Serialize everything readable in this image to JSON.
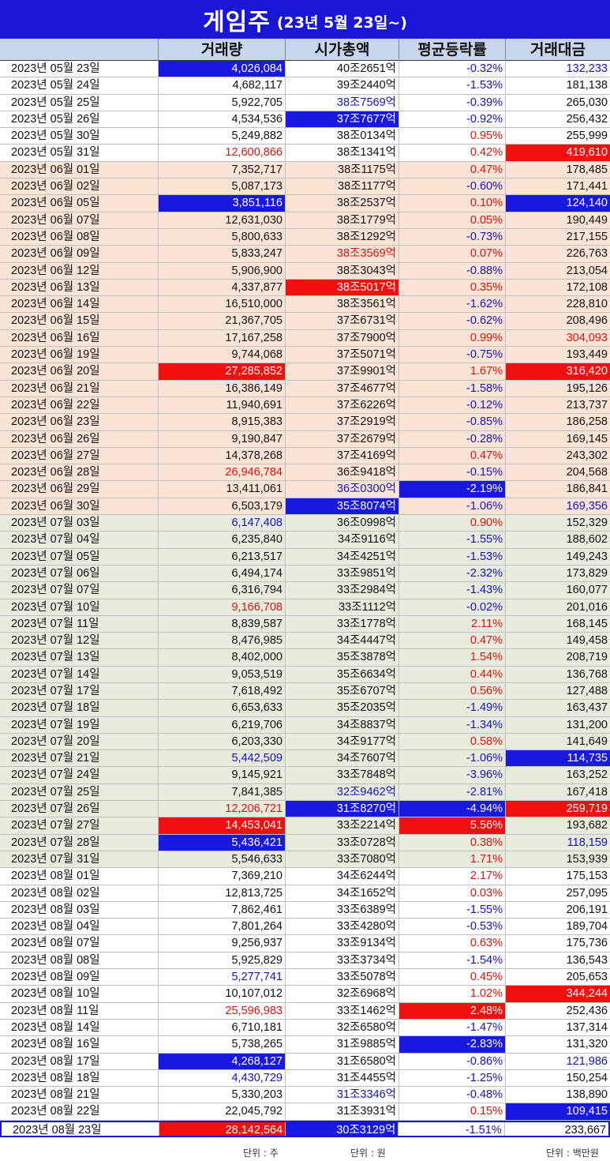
{
  "title": {
    "main": "게임주",
    "sub": "(23년 5월 23일~)"
  },
  "headers": [
    "",
    "거래량",
    "시가총액",
    "평균등락률",
    "거래대금"
  ],
  "units": {
    "volume": "단위 : 주",
    "cap": "단위 : 원",
    "amount": "단위 : 백만원"
  },
  "colors": {
    "header_bg": "#c9d6ee",
    "title_bg": "#1a16d6",
    "highlight_blue": "#1818e0",
    "highlight_red": "#f01010",
    "text_red": "#e3120b",
    "text_blue": "#1212cc"
  },
  "rows": [
    {
      "date": "2023년 05월 23일",
      "volume": "4,026,084",
      "cap": "40조2651억",
      "change": "-0.32%",
      "amount": "132,233",
      "group": 1,
      "vs": "bgblue",
      "ss": "",
      "cs": "blue",
      "as": "blue"
    },
    {
      "date": "2023년 05월 24일",
      "volume": "4,682,117",
      "cap": "39조2440억",
      "change": "-1.53%",
      "amount": "181,138",
      "group": 1,
      "vs": "",
      "ss": "",
      "cs": "blue",
      "as": ""
    },
    {
      "date": "2023년 05월 25일",
      "volume": "5,922,705",
      "cap": "38조7569억",
      "change": "-0.39%",
      "amount": "265,030",
      "group": 1,
      "vs": "",
      "ss": "blue",
      "cs": "blue",
      "as": ""
    },
    {
      "date": "2023년 05월 26일",
      "volume": "4,534,536",
      "cap": "37조7677억",
      "change": "-0.92%",
      "amount": "256,432",
      "group": 1,
      "vs": "",
      "ss": "bgblue",
      "cs": "blue",
      "as": ""
    },
    {
      "date": "2023년 05월 30일",
      "volume": "5,249,882",
      "cap": "38조0134억",
      "change": "0.95%",
      "amount": "255,999",
      "group": 1,
      "vs": "",
      "ss": "",
      "cs": "red",
      "as": ""
    },
    {
      "date": "2023년 05월 31일",
      "volume": "12,600,866",
      "cap": "38조1341억",
      "change": "0.42%",
      "amount": "419,610",
      "group": 1,
      "vs": "red",
      "ss": "",
      "cs": "red",
      "as": "bgred"
    },
    {
      "date": "2023년 06월 01일",
      "volume": "7,352,717",
      "cap": "38조1175억",
      "change": "0.47%",
      "amount": "178,485",
      "group": 2,
      "vs": "",
      "ss": "",
      "cs": "red",
      "as": ""
    },
    {
      "date": "2023년 06월 02일",
      "volume": "5,087,173",
      "cap": "38조1177억",
      "change": "-0.60%",
      "amount": "171,441",
      "group": 2,
      "vs": "",
      "ss": "",
      "cs": "blue",
      "as": ""
    },
    {
      "date": "2023년 06월 05일",
      "volume": "3,851,116",
      "cap": "38조2537억",
      "change": "0.10%",
      "amount": "124,140",
      "group": 2,
      "vs": "bgblue",
      "ss": "",
      "cs": "red",
      "as": "bgblue"
    },
    {
      "date": "2023년 06월 07일",
      "volume": "12,631,030",
      "cap": "38조1779억",
      "change": "0.05%",
      "amount": "190,449",
      "group": 2,
      "vs": "",
      "ss": "",
      "cs": "red",
      "as": ""
    },
    {
      "date": "2023년 06월 08일",
      "volume": "5,800,633",
      "cap": "38조1292억",
      "change": "-0.73%",
      "amount": "217,155",
      "group": 2,
      "vs": "",
      "ss": "",
      "cs": "blue",
      "as": ""
    },
    {
      "date": "2023년 06월 09일",
      "volume": "5,833,247",
      "cap": "38조3569억",
      "change": "0.07%",
      "amount": "226,763",
      "group": 2,
      "vs": "",
      "ss": "red",
      "cs": "red",
      "as": ""
    },
    {
      "date": "2023년 06월 12일",
      "volume": "5,906,900",
      "cap": "38조3043억",
      "change": "-0.88%",
      "amount": "213,054",
      "group": 2,
      "vs": "",
      "ss": "",
      "cs": "blue",
      "as": ""
    },
    {
      "date": "2023년 06월 13일",
      "volume": "4,337,877",
      "cap": "38조5017억",
      "change": "0.35%",
      "amount": "172,108",
      "group": 2,
      "vs": "",
      "ss": "bgred",
      "cs": "red",
      "as": ""
    },
    {
      "date": "2023년 06월 14일",
      "volume": "16,510,000",
      "cap": "38조3561억",
      "change": "-1.62%",
      "amount": "228,810",
      "group": 2,
      "vs": "",
      "ss": "",
      "cs": "blue",
      "as": ""
    },
    {
      "date": "2023년 06월 15일",
      "volume": "21,367,705",
      "cap": "37조6731억",
      "change": "-0.62%",
      "amount": "208,496",
      "group": 2,
      "vs": "",
      "ss": "",
      "cs": "blue",
      "as": ""
    },
    {
      "date": "2023년 06월 16일",
      "volume": "17,167,258",
      "cap": "37조7900억",
      "change": "0.99%",
      "amount": "304,093",
      "group": 2,
      "vs": "",
      "ss": "",
      "cs": "red",
      "as": "red"
    },
    {
      "date": "2023년 06월 19일",
      "volume": "9,744,068",
      "cap": "37조5071억",
      "change": "-0.75%",
      "amount": "193,449",
      "group": 2,
      "vs": "",
      "ss": "",
      "cs": "blue",
      "as": ""
    },
    {
      "date": "2023년 06월 20일",
      "volume": "27,285,852",
      "cap": "37조9901억",
      "change": "1.67%",
      "amount": "316,420",
      "group": 2,
      "vs": "bgred",
      "ss": "",
      "cs": "red",
      "as": "bgred"
    },
    {
      "date": "2023년 06월 21일",
      "volume": "16,386,149",
      "cap": "37조4677억",
      "change": "-1.58%",
      "amount": "195,126",
      "group": 2,
      "vs": "",
      "ss": "",
      "cs": "blue",
      "as": ""
    },
    {
      "date": "2023년 06월 22일",
      "volume": "11,940,691",
      "cap": "37조6226억",
      "change": "-0.12%",
      "amount": "213,737",
      "group": 2,
      "vs": "",
      "ss": "",
      "cs": "blue",
      "as": ""
    },
    {
      "date": "2023년 06월 23일",
      "volume": "8,915,383",
      "cap": "37조2919억",
      "change": "-0.85%",
      "amount": "186,258",
      "group": 2,
      "vs": "",
      "ss": "",
      "cs": "blue",
      "as": ""
    },
    {
      "date": "2023년 06월 26일",
      "volume": "9,190,847",
      "cap": "37조2679억",
      "change": "-0.28%",
      "amount": "169,145",
      "group": 2,
      "vs": "",
      "ss": "",
      "cs": "blue",
      "as": ""
    },
    {
      "date": "2023년 06월 27일",
      "volume": "14,378,268",
      "cap": "37조4169억",
      "change": "0.47%",
      "amount": "243,302",
      "group": 2,
      "vs": "",
      "ss": "",
      "cs": "red",
      "as": ""
    },
    {
      "date": "2023년 06월 28일",
      "volume": "26,946,784",
      "cap": "36조9418억",
      "change": "-0.15%",
      "amount": "204,568",
      "group": 2,
      "vs": "red",
      "ss": "",
      "cs": "blue",
      "as": ""
    },
    {
      "date": "2023년 06월 29일",
      "volume": "13,411,061",
      "cap": "36조0300억",
      "change": "-2.19%",
      "amount": "186,841",
      "group": 2,
      "vs": "",
      "ss": "blue",
      "cs": "bgblue",
      "as": ""
    },
    {
      "date": "2023년 06월 30일",
      "volume": "6,503,179",
      "cap": "35조8074억",
      "change": "-1.06%",
      "amount": "169,356",
      "group": 2,
      "vs": "",
      "ss": "bgblue",
      "cs": "blue",
      "as": "blue"
    },
    {
      "date": "2023년 07월 03일",
      "volume": "6,147,408",
      "cap": "36조0998억",
      "change": "0.90%",
      "amount": "152,329",
      "group": 3,
      "vs": "blue",
      "ss": "",
      "cs": "red",
      "as": ""
    },
    {
      "date": "2023년 07월 04일",
      "volume": "6,235,840",
      "cap": "34조9116억",
      "change": "-1.55%",
      "amount": "188,602",
      "group": 3,
      "vs": "",
      "ss": "",
      "cs": "blue",
      "as": ""
    },
    {
      "date": "2023년 07월 05일",
      "volume": "6,213,517",
      "cap": "34조4251억",
      "change": "-1.53%",
      "amount": "149,243",
      "group": 3,
      "vs": "",
      "ss": "",
      "cs": "blue",
      "as": ""
    },
    {
      "date": "2023년 07월 06일",
      "volume": "6,494,174",
      "cap": "33조9851억",
      "change": "-2.32%",
      "amount": "173,829",
      "group": 3,
      "vs": "",
      "ss": "",
      "cs": "blue",
      "as": ""
    },
    {
      "date": "2023년 07월 07일",
      "volume": "6,316,794",
      "cap": "33조2984억",
      "change": "-1.43%",
      "amount": "160,077",
      "group": 3,
      "vs": "",
      "ss": "",
      "cs": "blue",
      "as": ""
    },
    {
      "date": "2023년 07월 10일",
      "volume": "9,166,708",
      "cap": "33조1112억",
      "change": "-0.02%",
      "amount": "201,016",
      "group": 3,
      "vs": "red",
      "ss": "",
      "cs": "blue",
      "as": ""
    },
    {
      "date": "2023년 07월 11일",
      "volume": "8,839,587",
      "cap": "33조1778억",
      "change": "2.11%",
      "amount": "168,145",
      "group": 3,
      "vs": "",
      "ss": "",
      "cs": "red",
      "as": ""
    },
    {
      "date": "2023년 07월 12일",
      "volume": "8,476,985",
      "cap": "34조4447억",
      "change": "0.47%",
      "amount": "149,458",
      "group": 3,
      "vs": "",
      "ss": "",
      "cs": "red",
      "as": ""
    },
    {
      "date": "2023년 07월 13일",
      "volume": "8,402,000",
      "cap": "35조3878억",
      "change": "1.54%",
      "amount": "208,719",
      "group": 3,
      "vs": "",
      "ss": "",
      "cs": "red",
      "as": ""
    },
    {
      "date": "2023년 07월 14일",
      "volume": "9,053,519",
      "cap": "35조6634억",
      "change": "0.44%",
      "amount": "136,768",
      "group": 3,
      "vs": "",
      "ss": "",
      "cs": "red",
      "as": ""
    },
    {
      "date": "2023년 07월 17일",
      "volume": "7,618,492",
      "cap": "35조6707억",
      "change": "0.56%",
      "amount": "127,488",
      "group": 3,
      "vs": "",
      "ss": "",
      "cs": "red",
      "as": ""
    },
    {
      "date": "2023년 07월 18일",
      "volume": "6,653,633",
      "cap": "35조2035억",
      "change": "-1.49%",
      "amount": "163,437",
      "group": 3,
      "vs": "",
      "ss": "",
      "cs": "blue",
      "as": ""
    },
    {
      "date": "2023년 07월 19일",
      "volume": "6,219,706",
      "cap": "34조8837억",
      "change": "-1.34%",
      "amount": "131,200",
      "group": 3,
      "vs": "",
      "ss": "",
      "cs": "blue",
      "as": ""
    },
    {
      "date": "2023년 07월 20일",
      "volume": "6,203,330",
      "cap": "34조9177억",
      "change": "0.58%",
      "amount": "141,649",
      "group": 3,
      "vs": "",
      "ss": "",
      "cs": "red",
      "as": ""
    },
    {
      "date": "2023년 07월 21일",
      "volume": "5,442,509",
      "cap": "34조7607억",
      "change": "-1.06%",
      "amount": "114,735",
      "group": 3,
      "vs": "blue",
      "ss": "",
      "cs": "blue",
      "as": "bgblue"
    },
    {
      "date": "2023년 07월 24일",
      "volume": "9,145,921",
      "cap": "33조7848억",
      "change": "-3.96%",
      "amount": "163,252",
      "group": 3,
      "vs": "",
      "ss": "",
      "cs": "blue",
      "as": ""
    },
    {
      "date": "2023년 07월 25일",
      "volume": "7,841,385",
      "cap": "32조9462억",
      "change": "-2.81%",
      "amount": "167,418",
      "group": 3,
      "vs": "",
      "ss": "blue",
      "cs": "blue",
      "as": ""
    },
    {
      "date": "2023년 07월 26일",
      "volume": "12,206,721",
      "cap": "31조8270억",
      "change": "-4.94%",
      "amount": "259,719",
      "group": 3,
      "vs": "red",
      "ss": "bgblue",
      "cs": "bgblue",
      "as": "bgred"
    },
    {
      "date": "2023년 07월 27일",
      "volume": "14,453,041",
      "cap": "33조2214억",
      "change": "5.56%",
      "amount": "193,682",
      "group": 3,
      "vs": "bgred",
      "ss": "",
      "cs": "bgred",
      "as": ""
    },
    {
      "date": "2023년 07월 28일",
      "volume": "5,436,421",
      "cap": "33조0728억",
      "change": "0.38%",
      "amount": "118,159",
      "group": 3,
      "vs": "bgblue",
      "ss": "",
      "cs": "red",
      "as": "blue"
    },
    {
      "date": "2023년 07월 31일",
      "volume": "5,546,633",
      "cap": "33조7080억",
      "change": "1.71%",
      "amount": "153,939",
      "group": 3,
      "vs": "",
      "ss": "",
      "cs": "red",
      "as": ""
    },
    {
      "date": "2023년 08월 01일",
      "volume": "7,369,210",
      "cap": "34조6244억",
      "change": "2.17%",
      "amount": "175,153",
      "group": 1,
      "vs": "",
      "ss": "",
      "cs": "red",
      "as": ""
    },
    {
      "date": "2023년 08월 02일",
      "volume": "12,813,725",
      "cap": "34조1652억",
      "change": "0.03%",
      "amount": "257,095",
      "group": 1,
      "vs": "",
      "ss": "",
      "cs": "red",
      "as": ""
    },
    {
      "date": "2023년 08월 03일",
      "volume": "7,862,461",
      "cap": "33조6389억",
      "change": "-1.55%",
      "amount": "206,191",
      "group": 1,
      "vs": "",
      "ss": "",
      "cs": "blue",
      "as": ""
    },
    {
      "date": "2023년 08월 04일",
      "volume": "7,801,264",
      "cap": "33조4280억",
      "change": "-0.53%",
      "amount": "189,704",
      "group": 1,
      "vs": "",
      "ss": "",
      "cs": "blue",
      "as": ""
    },
    {
      "date": "2023년 08월 07일",
      "volume": "9,256,937",
      "cap": "33조9134억",
      "change": "0.63%",
      "amount": "175,736",
      "group": 1,
      "vs": "",
      "ss": "",
      "cs": "red",
      "as": ""
    },
    {
      "date": "2023년 08월 08일",
      "volume": "5,925,829",
      "cap": "33조3734억",
      "change": "-1.54%",
      "amount": "136,543",
      "group": 1,
      "vs": "",
      "ss": "",
      "cs": "blue",
      "as": ""
    },
    {
      "date": "2023년 08월 09일",
      "volume": "5,277,741",
      "cap": "33조5078억",
      "change": "0.45%",
      "amount": "205,653",
      "group": 1,
      "vs": "blue",
      "ss": "",
      "cs": "red",
      "as": ""
    },
    {
      "date": "2023년 08월 10일",
      "volume": "10,107,012",
      "cap": "32조6968억",
      "change": "1.02%",
      "amount": "344,244",
      "group": 1,
      "vs": "",
      "ss": "",
      "cs": "red",
      "as": "bgred"
    },
    {
      "date": "2023년 08월 11일",
      "volume": "25,596,983",
      "cap": "33조1462억",
      "change": "2.48%",
      "amount": "252,436",
      "group": 1,
      "vs": "red",
      "ss": "",
      "cs": "bgred",
      "as": ""
    },
    {
      "date": "2023년 08월 14일",
      "volume": "6,710,181",
      "cap": "32조6580억",
      "change": "-1.47%",
      "amount": "137,314",
      "group": 1,
      "vs": "",
      "ss": "",
      "cs": "blue",
      "as": ""
    },
    {
      "date": "2023년 08월 16일",
      "volume": "5,738,265",
      "cap": "31조9885억",
      "change": "-2.83%",
      "amount": "131,320",
      "group": 1,
      "vs": "",
      "ss": "",
      "cs": "bgblue",
      "as": ""
    },
    {
      "date": "2023년 08월 17일",
      "volume": "4,268,127",
      "cap": "31조6580억",
      "change": "-0.86%",
      "amount": "121,986",
      "group": 1,
      "vs": "bgblue",
      "ss": "",
      "cs": "blue",
      "as": "blue"
    },
    {
      "date": "2023년 08월 18일",
      "volume": "4,430,729",
      "cap": "31조4455억",
      "change": "-1.25%",
      "amount": "150,254",
      "group": 1,
      "vs": "blue",
      "ss": "",
      "cs": "blue",
      "as": ""
    },
    {
      "date": "2023년 08월 21일",
      "volume": "5,330,203",
      "cap": "31조3346억",
      "change": "-0.48%",
      "amount": "138,890",
      "group": 1,
      "vs": "",
      "ss": "blue",
      "cs": "blue",
      "as": ""
    },
    {
      "date": "2023년 08월 22일",
      "volume": "22,045,792",
      "cap": "31조3931억",
      "change": "0.15%",
      "amount": "109,415",
      "group": 1,
      "vs": "",
      "ss": "",
      "cs": "red",
      "as": "bgblue"
    },
    {
      "date": "2023년 08월 23일",
      "volume": "28,142,564",
      "cap": "30조3129억",
      "change": "-1.51%",
      "amount": "233,667",
      "group": 1,
      "vs": "bgred",
      "ss": "bgblue",
      "cs": "blue",
      "as": ""
    }
  ]
}
